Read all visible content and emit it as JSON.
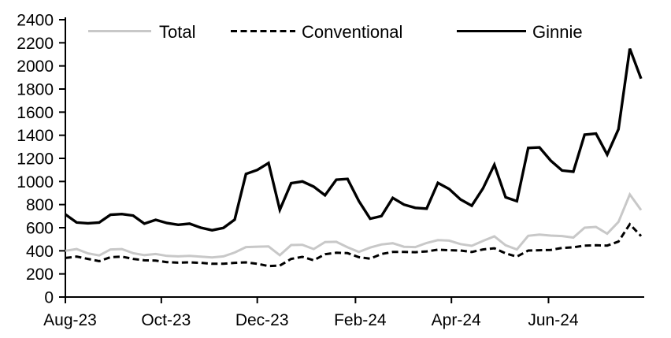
{
  "chart_data": {
    "type": "line",
    "title": "",
    "x_frequency": "weekly",
    "x_tick_labels": [
      "Aug-23",
      "Oct-23",
      "Dec-23",
      "Feb-24",
      "Apr-24",
      "Jun-24"
    ],
    "x_tick_week_indices": [
      0,
      8.5,
      17,
      25.7,
      34.2,
      42.8
    ],
    "y_axis": {
      "min": 0,
      "max": 2400,
      "step": 200
    },
    "grid": false,
    "legend_position": "top",
    "series": [
      {
        "name": "Total",
        "color": "#c8c8c8",
        "style": "solid",
        "values": [
          400,
          415,
          378,
          360,
          412,
          415,
          380,
          363,
          372,
          356,
          352,
          356,
          350,
          343,
          352,
          385,
          432,
          436,
          438,
          362,
          450,
          452,
          415,
          476,
          478,
          430,
          390,
          428,
          455,
          466,
          435,
          432,
          468,
          492,
          488,
          458,
          443,
          486,
          525,
          448,
          412,
          530,
          540,
          532,
          528,
          515,
          600,
          607,
          548,
          650,
          888,
          753
        ]
      },
      {
        "name": "Conventional",
        "color": "#000000",
        "style": "dashed",
        "values": [
          338,
          350,
          330,
          310,
          345,
          350,
          330,
          318,
          315,
          302,
          297,
          300,
          296,
          288,
          288,
          296,
          300,
          288,
          268,
          272,
          330,
          348,
          318,
          370,
          383,
          380,
          345,
          332,
          372,
          390,
          390,
          388,
          395,
          410,
          405,
          402,
          390,
          412,
          422,
          378,
          350,
          402,
          405,
          408,
          425,
          430,
          445,
          448,
          445,
          480,
          630,
          528
        ]
      },
      {
        "name": "Ginnie",
        "color": "#000000",
        "style": "solid",
        "values": [
          715,
          645,
          638,
          645,
          712,
          718,
          705,
          635,
          668,
          640,
          625,
          635,
          600,
          578,
          598,
          670,
          1065,
          1100,
          1160,
          755,
          985,
          1000,
          955,
          880,
          1015,
          1022,
          830,
          678,
          700,
          858,
          800,
          772,
          765,
          988,
          935,
          845,
          790,
          940,
          1145,
          863,
          830,
          1290,
          1295,
          1180,
          1095,
          1085,
          1405,
          1415,
          1233,
          1452,
          2150,
          1890
        ]
      }
    ]
  }
}
